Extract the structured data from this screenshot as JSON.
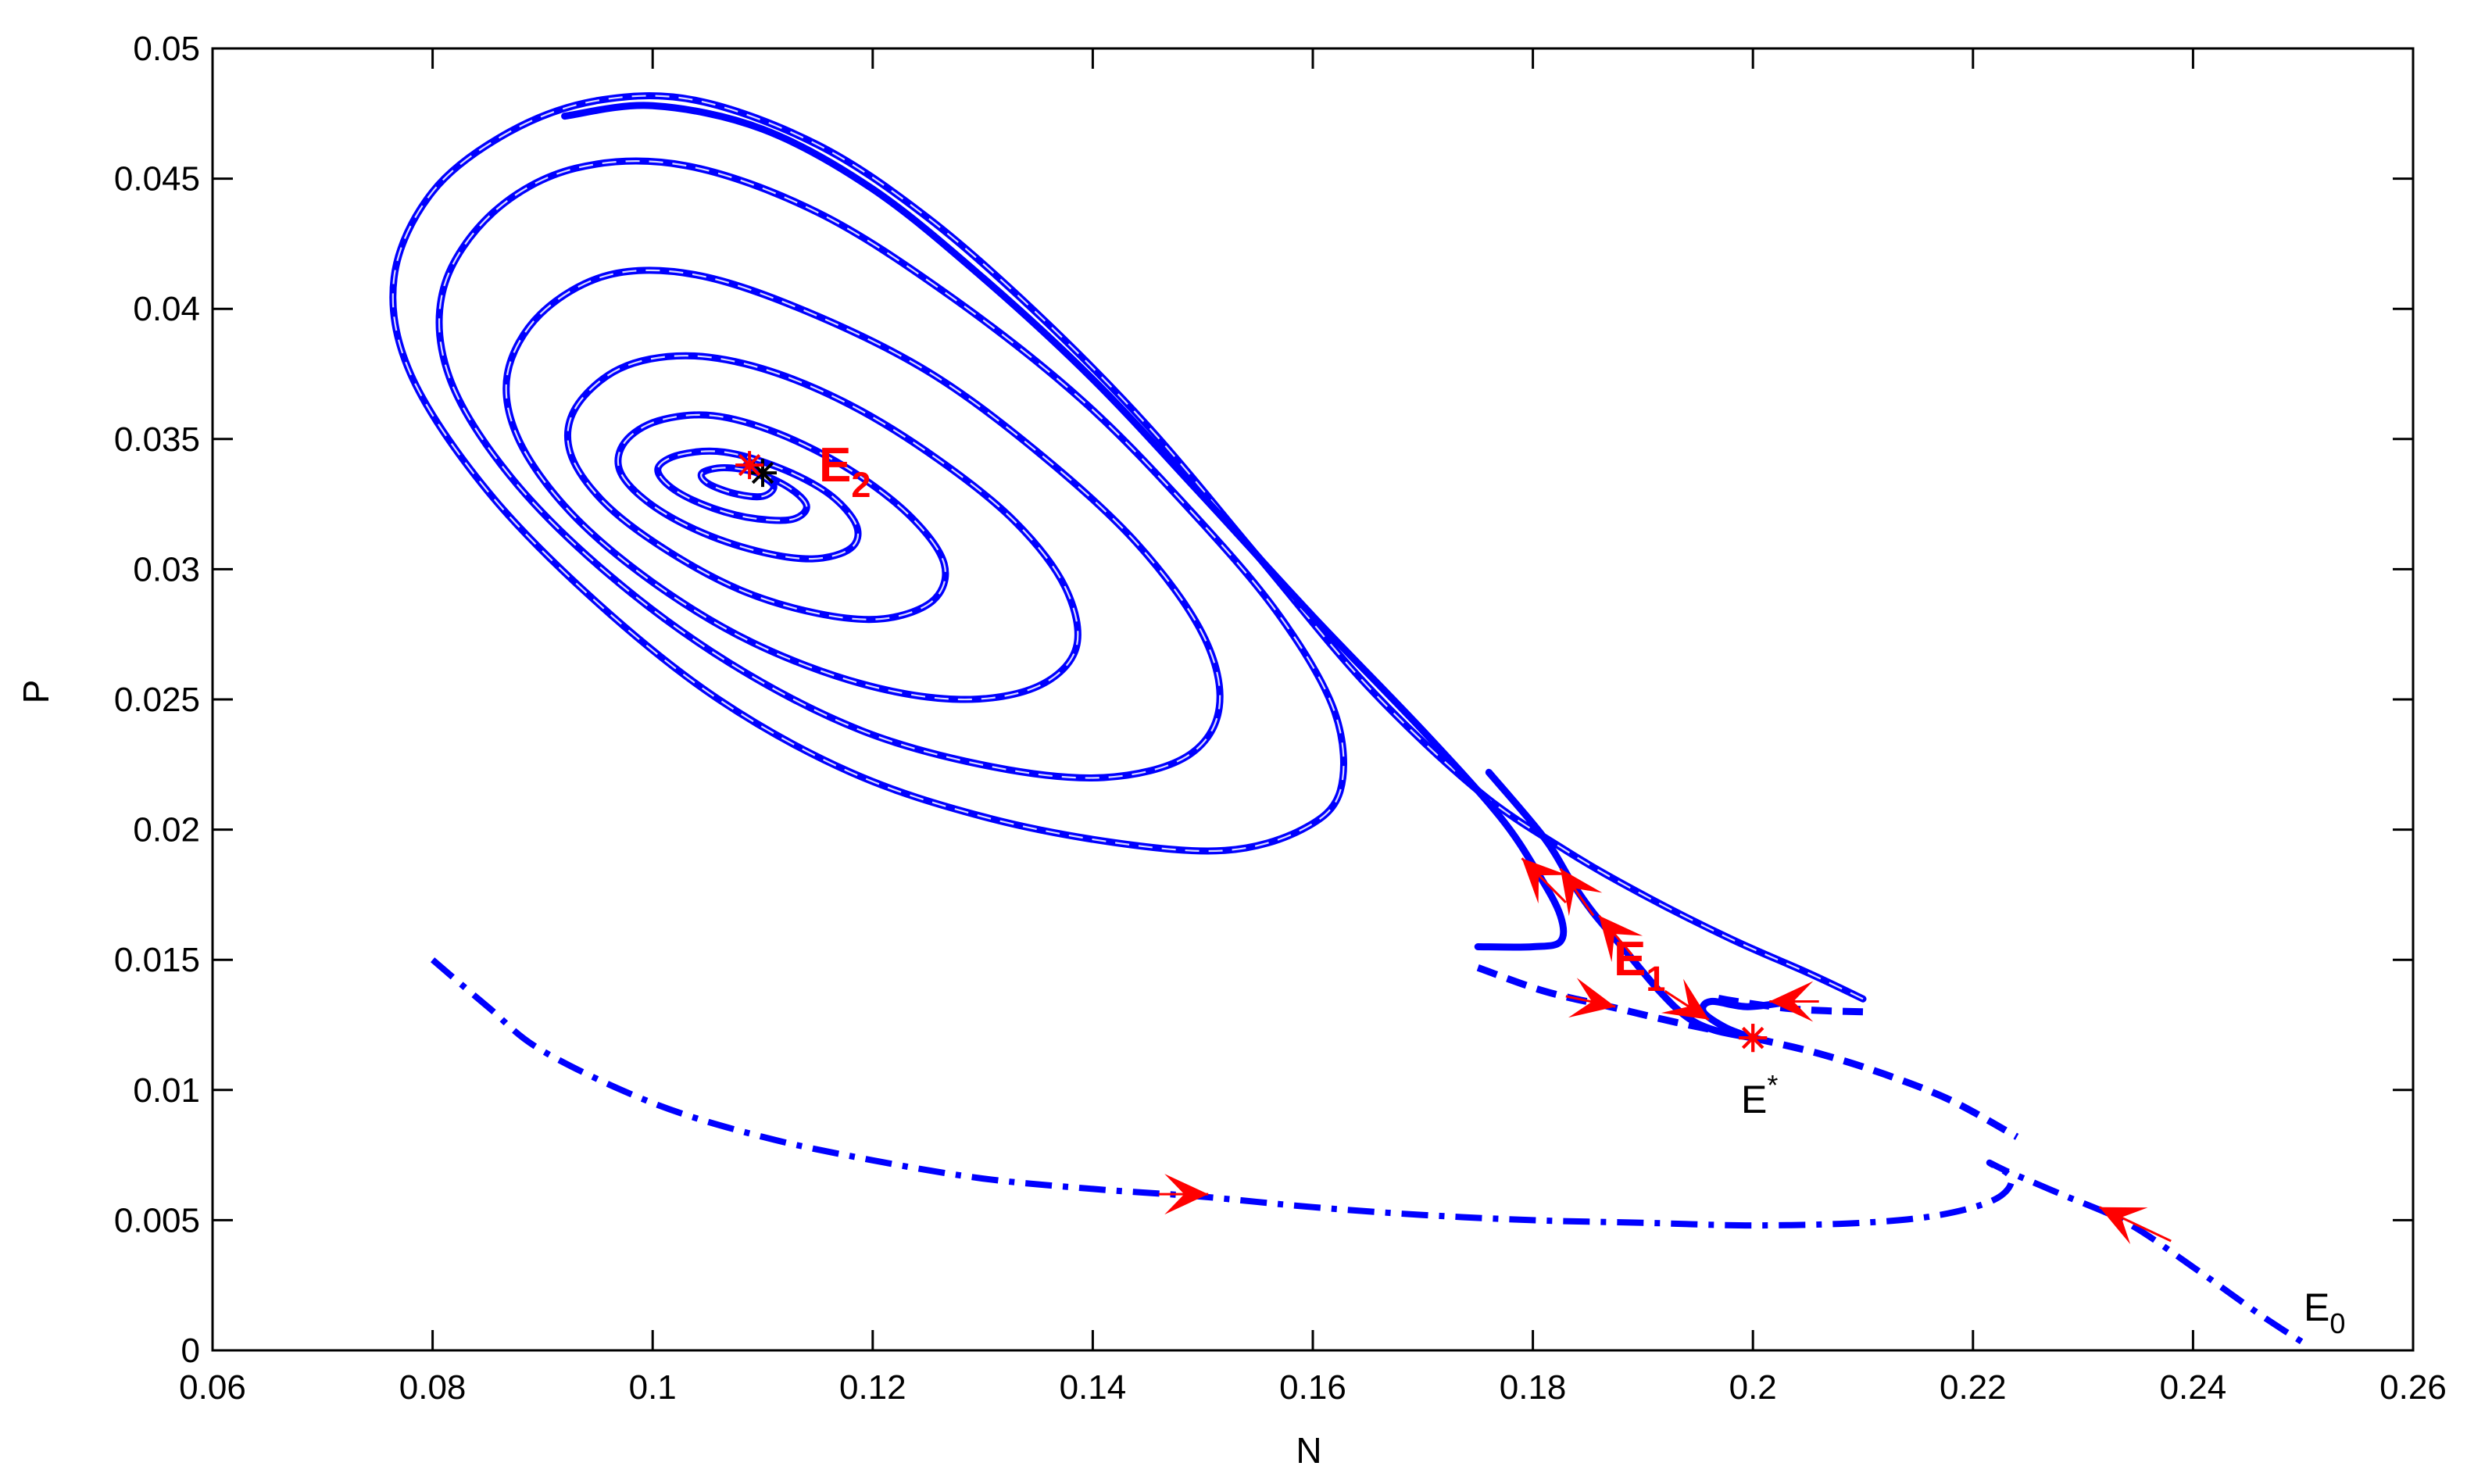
{
  "chart_data": {
    "type": "line",
    "title": "",
    "xlabel": "N",
    "ylabel": "P",
    "xlim": [
      0.06,
      0.26
    ],
    "ylim": [
      0,
      0.05
    ],
    "grid": false,
    "x_ticks": [
      "0.06",
      "0.08",
      "0.1",
      "0.12",
      "0.14",
      "0.16",
      "0.18",
      "0.2",
      "0.22",
      "0.24",
      "0.26"
    ],
    "y_ticks": [
      "0",
      "0.005",
      "0.01",
      "0.015",
      "0.02",
      "0.025",
      "0.03",
      "0.035",
      "0.04",
      "0.045",
      "0.05"
    ],
    "colors": {
      "trajectory": "#0000ff",
      "arrow": "#ff0000",
      "equilibrium_label": "#ff0000",
      "axis": "#000000"
    },
    "series": [
      {
        "style": "solid",
        "points": [
          [
            0.21,
            0.0135
          ],
          [
            0.205,
            0.0145
          ],
          [
            0.198,
            0.0158
          ],
          [
            0.19,
            0.0175
          ],
          [
            0.183,
            0.0192
          ],
          [
            0.175,
            0.0215
          ],
          [
            0.165,
            0.0255
          ],
          [
            0.155,
            0.0305
          ],
          [
            0.145,
            0.0355
          ],
          [
            0.135,
            0.0398
          ],
          [
            0.125,
            0.0435
          ],
          [
            0.115,
            0.0463
          ],
          [
            0.104,
            0.048
          ],
          [
            0.095,
            0.048
          ],
          [
            0.087,
            0.0468
          ],
          [
            0.08,
            0.0445
          ],
          [
            0.0765,
            0.0412
          ],
          [
            0.078,
            0.0375
          ],
          [
            0.085,
            0.033
          ],
          [
            0.095,
            0.0287
          ],
          [
            0.106,
            0.025
          ],
          [
            0.118,
            0.0222
          ],
          [
            0.13,
            0.0205
          ],
          [
            0.142,
            0.0195
          ],
          [
            0.152,
            0.0192
          ],
          [
            0.159,
            0.02
          ],
          [
            0.1625,
            0.0215
          ],
          [
            0.162,
            0.0245
          ],
          [
            0.157,
            0.0282
          ],
          [
            0.149,
            0.0322
          ],
          [
            0.139,
            0.0365
          ],
          [
            0.127,
            0.0405
          ],
          [
            0.115,
            0.0437
          ],
          [
            0.103,
            0.0455
          ],
          [
            0.093,
            0.0454
          ],
          [
            0.0855,
            0.0437
          ],
          [
            0.081,
            0.0408
          ],
          [
            0.0815,
            0.0374
          ],
          [
            0.087,
            0.0336
          ],
          [
            0.096,
            0.0298
          ],
          [
            0.107,
            0.0264
          ],
          [
            0.119,
            0.0238
          ],
          [
            0.131,
            0.0224
          ],
          [
            0.141,
            0.022
          ],
          [
            0.1485,
            0.0228
          ],
          [
            0.1515,
            0.0247
          ],
          [
            0.15,
            0.0275
          ],
          [
            0.144,
            0.031
          ],
          [
            0.135,
            0.0345
          ],
          [
            0.125,
            0.0376
          ],
          [
            0.114,
            0.0399
          ],
          [
            0.104,
            0.0413
          ],
          [
            0.096,
            0.0413
          ],
          [
            0.0898,
            0.0398
          ],
          [
            0.0868,
            0.0375
          ],
          [
            0.0878,
            0.035
          ],
          [
            0.0925,
            0.0322
          ],
          [
            0.1,
            0.0295
          ],
          [
            0.109,
            0.0272
          ],
          [
            0.119,
            0.0256
          ],
          [
            0.128,
            0.025
          ],
          [
            0.135,
            0.0255
          ],
          [
            0.1385,
            0.027
          ],
          [
            0.1375,
            0.0293
          ],
          [
            0.133,
            0.0318
          ],
          [
            0.126,
            0.0342
          ],
          [
            0.118,
            0.0363
          ],
          [
            0.11,
            0.0377
          ],
          [
            0.103,
            0.0382
          ],
          [
            0.097,
            0.0377
          ],
          [
            0.093,
            0.0362
          ],
          [
            0.0925,
            0.0345
          ],
          [
            0.0955,
            0.0326
          ],
          [
            0.101,
            0.0308
          ],
          [
            0.108,
            0.0292
          ],
          [
            0.115,
            0.0283
          ],
          [
            0.121,
            0.0281
          ],
          [
            0.1255,
            0.0288
          ],
          [
            0.1265,
            0.0302
          ],
          [
            0.1235,
            0.032
          ],
          [
            0.118,
            0.0338
          ],
          [
            0.1115,
            0.0352
          ],
          [
            0.1055,
            0.0359
          ],
          [
            0.1005,
            0.0357
          ],
          [
            0.0975,
            0.0349
          ],
          [
            0.097,
            0.0338
          ],
          [
            0.0995,
            0.0326
          ],
          [
            0.104,
            0.0315
          ],
          [
            0.1095,
            0.0307
          ],
          [
            0.1145,
            0.0304
          ],
          [
            0.118,
            0.0308
          ],
          [
            0.1185,
            0.0317
          ],
          [
            0.116,
            0.0329
          ],
          [
            0.1115,
            0.0339
          ],
          [
            0.1065,
            0.0345
          ],
          [
            0.1025,
            0.0344
          ],
          [
            0.1005,
            0.0339
          ],
          [
            0.1015,
            0.0332
          ],
          [
            0.1045,
            0.0325
          ],
          [
            0.1085,
            0.032
          ],
          [
            0.1125,
            0.0319
          ],
          [
            0.114,
            0.0324
          ],
          [
            0.1125,
            0.0331
          ],
          [
            0.1095,
            0.0337
          ],
          [
            0.1065,
            0.0339
          ],
          [
            0.1045,
            0.0337
          ],
          [
            0.105,
            0.0333
          ],
          [
            0.1075,
            0.0329
          ],
          [
            0.11,
            0.0328
          ],
          [
            0.111,
            0.0332
          ],
          [
            0.1095,
            0.0337
          ],
          [
            0.1085,
            0.034
          ]
        ]
      },
      {
        "style": "solid",
        "points": [
          [
            0.175,
            0.0155
          ],
          [
            0.18,
            0.0155
          ],
          [
            0.1825,
            0.0157
          ],
          [
            0.1825,
            0.0167
          ],
          [
            0.1805,
            0.0183
          ],
          [
            0.177,
            0.0205
          ],
          [
            0.17,
            0.0238
          ],
          [
            0.16,
            0.0282
          ],
          [
            0.15,
            0.0328
          ],
          [
            0.14,
            0.0373
          ],
          [
            0.13,
            0.0412
          ],
          [
            0.12,
            0.0446
          ],
          [
            0.11,
            0.0469
          ],
          [
            0.1,
            0.0478
          ],
          [
            0.092,
            0.0474
          ]
        ]
      },
      {
        "style": "solid",
        "points": [
          [
            0.2,
            0.012
          ],
          [
            0.1965,
            0.0123
          ],
          [
            0.194,
            0.0128
          ],
          [
            0.1915,
            0.0138
          ],
          [
            0.1885,
            0.0153
          ],
          [
            0.1855,
            0.0168
          ],
          [
            0.1835,
            0.018
          ],
          [
            0.181,
            0.0197
          ],
          [
            0.176,
            0.0222
          ]
        ]
      },
      {
        "style": "solid",
        "points": [
          [
            0.2,
            0.012
          ],
          [
            0.1975,
            0.0124
          ],
          [
            0.1955,
            0.013
          ],
          [
            0.1962,
            0.0134
          ],
          [
            0.1995,
            0.0132
          ],
          [
            0.2035,
            0.0134
          ]
        ]
      },
      {
        "style": "dashed",
        "points": [
          [
            0.175,
            0.0147
          ],
          [
            0.181,
            0.0138
          ],
          [
            0.187,
            0.0132
          ],
          [
            0.193,
            0.0126
          ],
          [
            0.2,
            0.012
          ]
        ]
      },
      {
        "style": "dashed",
        "points": [
          [
            0.21,
            0.013
          ],
          [
            0.204,
            0.0131
          ],
          [
            0.1985,
            0.0134
          ],
          [
            0.196,
            0.0136
          ]
        ]
      },
      {
        "style": "dashed",
        "points": [
          [
            0.2,
            0.012
          ],
          [
            0.206,
            0.0114
          ],
          [
            0.212,
            0.0106
          ],
          [
            0.218,
            0.0096
          ],
          [
            0.224,
            0.0082
          ]
        ]
      },
      {
        "style": "dashdot",
        "points": [
          [
            0.08,
            0.015
          ],
          [
            0.085,
            0.0132
          ],
          [
            0.09,
            0.0115
          ],
          [
            0.1,
            0.0095
          ],
          [
            0.11,
            0.0082
          ],
          [
            0.12,
            0.0073
          ],
          [
            0.13,
            0.0066
          ],
          [
            0.14,
            0.0062
          ],
          [
            0.15,
            0.0059
          ],
          [
            0.16,
            0.0055
          ],
          [
            0.17,
            0.0052
          ],
          [
            0.18,
            0.005
          ],
          [
            0.19,
            0.0049
          ],
          [
            0.2,
            0.0048
          ],
          [
            0.21,
            0.0049
          ],
          [
            0.217,
            0.0052
          ],
          [
            0.222,
            0.0058
          ],
          [
            0.2235,
            0.0066
          ],
          [
            0.2215,
            0.0072
          ],
          [
            0.223,
            0.0069
          ],
          [
            0.228,
            0.006
          ],
          [
            0.234,
            0.0049
          ],
          [
            0.24,
            0.0032
          ],
          [
            0.246,
            0.0014
          ],
          [
            0.25,
            0.0003
          ]
        ]
      }
    ],
    "direction_arrows": [
      {
        "from": [
          0.146,
          0.006
        ],
        "to": [
          0.1505,
          0.006
        ]
      },
      {
        "from": [
          0.238,
          0.0042
        ],
        "to": [
          0.2315,
          0.0055
        ]
      },
      {
        "from": [
          0.183,
          0.0136
        ],
        "to": [
          0.1875,
          0.0132
        ]
      },
      {
        "from": [
          0.206,
          0.0134
        ],
        "to": [
          0.2015,
          0.0134
        ]
      },
      {
        "from": [
          0.192,
          0.0138
        ],
        "to": [
          0.196,
          0.0127
        ]
      },
      {
        "from": [
          0.189,
          0.0152
        ],
        "to": [
          0.186,
          0.0167
        ]
      },
      {
        "from": [
          0.1855,
          0.0167
        ],
        "to": [
          0.1825,
          0.0185
        ]
      },
      {
        "from": [
          0.183,
          0.0172
        ],
        "to": [
          0.179,
          0.0189
        ]
      }
    ],
    "equilibria": [
      {
        "name": "E",
        "sub": "2",
        "sup": "",
        "x": 0.1088,
        "y": 0.034,
        "marker_color": "#ff0000",
        "label_color": "#ff0000",
        "label_bold": true
      },
      {
        "name": "E",
        "sub": "1",
        "sup": "",
        "x": 0.2,
        "y": 0.012,
        "marker_color": "#ff0000",
        "label_color": "#ff0000",
        "label_bold": true
      },
      {
        "name": "E",
        "sub": "",
        "sup": "*",
        "x": 0.2,
        "y": 0.012,
        "marker_color": "#ff0000",
        "label_color": "#000000",
        "label_bold": false
      },
      {
        "name": "E",
        "sub": "0",
        "sup": "",
        "x": 0.25,
        "y": 0.0003,
        "marker_color": "",
        "label_color": "#000000",
        "label_bold": false
      }
    ]
  }
}
